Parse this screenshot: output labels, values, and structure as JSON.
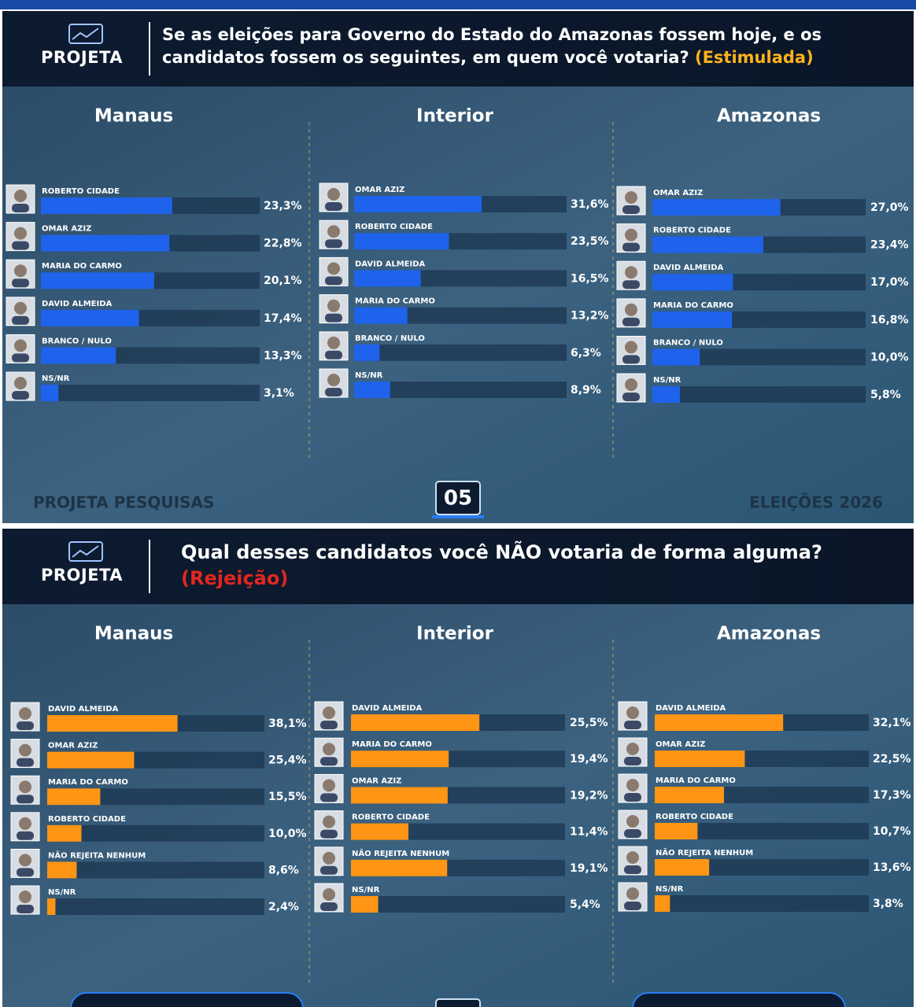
{
  "slides": [
    {
      "logo": "PROJETA",
      "question": "Se as eleições para Governo do Estado do Amazonas fossem hoje, e os candidatos fossem os seguintes, em quem você votaria?",
      "tag": "(Estimulada)",
      "footer_left": "PROJETA PESQUISAS",
      "page": "05",
      "footer_right": "ELEIÇÕES 2026"
    },
    {
      "logo": "PROJETA",
      "question": "Qual desses candidatos você NÃO votaria de forma alguma?",
      "tag": "(Rejeição)"
    }
  ],
  "chart_data": [
    {
      "type": "hbar",
      "title": "Manaus",
      "color": "#1f63ec",
      "categories": [
        "ROBERTO CIDADE",
        "OMAR AZIZ",
        "MARIA DO CARMO",
        "DAVID ALMEIDA",
        "BRANCO / NULO",
        "NS/NR"
      ],
      "values": [
        23.3,
        22.8,
        20.1,
        17.4,
        13.3,
        3.1
      ],
      "value_labels": [
        "23,3%",
        "22,8%",
        "20,1%",
        "17,4%",
        "13,3%",
        "3,1%"
      ]
    },
    {
      "type": "hbar",
      "title": "Interior",
      "color": "#1f63ec",
      "categories": [
        "OMAR AZIZ",
        "ROBERTO CIDADE",
        "DAVID ALMEIDA",
        "MARIA DO CARMO",
        "BRANCO / NULO",
        "NS/NR"
      ],
      "values": [
        31.6,
        23.5,
        16.5,
        13.2,
        6.3,
        8.9
      ],
      "value_labels": [
        "31,6%",
        "23,5%",
        "16,5%",
        "13,2%",
        "6,3%",
        "8,9%"
      ]
    },
    {
      "type": "hbar",
      "title": "Amazonas",
      "color": "#1f63ec",
      "categories": [
        "OMAR AZIZ",
        "ROBERTO CIDADE",
        "DAVID ALMEIDA",
        "MARIA DO CARMO",
        "BRANCO / NULO",
        "NS/NR"
      ],
      "values": [
        27.0,
        23.4,
        17.0,
        16.8,
        10.0,
        5.8
      ],
      "value_labels": [
        "27,0%",
        "23,4%",
        "17,0%",
        "16,8%",
        "10,0%",
        "5,8%"
      ]
    },
    {
      "type": "hbar",
      "title": "Manaus",
      "color": "#ff9514",
      "categories": [
        "DAVID ALMEIDA",
        "OMAR AZIZ",
        "MARIA DO CARMO",
        "ROBERTO CIDADE",
        "NÃO REJEITA NENHUM",
        "NS/NR"
      ],
      "values": [
        38.1,
        25.4,
        15.5,
        10.0,
        8.6,
        2.4
      ],
      "value_labels": [
        "38,1%",
        "25,4%",
        "15,5%",
        "10,0%",
        "8,6%",
        "2,4%"
      ]
    },
    {
      "type": "hbar",
      "title": "Interior",
      "color": "#ff9514",
      "categories": [
        "DAVID ALMEIDA",
        "MARIA DO CARMO",
        "OMAR AZIZ",
        "ROBERTO CIDADE",
        "NÃO REJEITA NENHUM",
        "NS/NR"
      ],
      "values": [
        25.5,
        19.4,
        19.2,
        11.4,
        19.1,
        5.4
      ],
      "value_labels": [
        "25,5%",
        "19,4%",
        "19,2%",
        "11,4%",
        "19,1%",
        "5,4%"
      ]
    },
    {
      "type": "hbar",
      "title": "Amazonas",
      "color": "#ff9514",
      "categories": [
        "DAVID ALMEIDA",
        "OMAR AZIZ",
        "MARIA DO CARMO",
        "ROBERTO CIDADE",
        "NÃO REJEITA NENHUM",
        "NS/NR"
      ],
      "values": [
        32.1,
        22.5,
        17.3,
        10.7,
        13.6,
        3.8
      ],
      "value_labels": [
        "32,1%",
        "22,5%",
        "17,3%",
        "10,7%",
        "13,6%",
        "3,8%"
      ]
    }
  ]
}
